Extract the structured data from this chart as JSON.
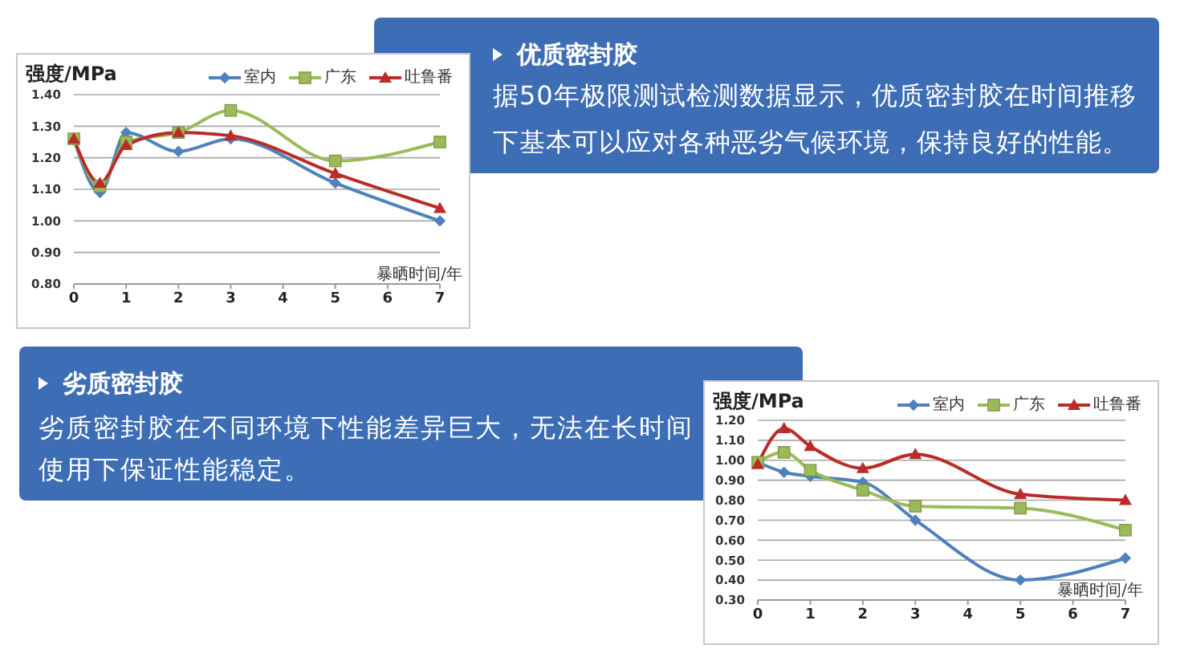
{
  "chart_data": [
    {
      "type": "line",
      "ylabel": "强度/MPa",
      "xlabel": "暴晒时间/年",
      "x": [
        0,
        0.5,
        1,
        2,
        3,
        5,
        7
      ],
      "xlim": [
        0,
        7
      ],
      "xticks": [
        0,
        1,
        2,
        3,
        4,
        5,
        6,
        7
      ],
      "ylim": [
        0.8,
        1.4
      ],
      "yticks": [
        {
          "value": 0.8,
          "label": "0.80"
        },
        {
          "value": 0.9,
          "label": "0.90"
        },
        {
          "value": 1.0,
          "label": "1.00"
        },
        {
          "value": 1.1,
          "label": "1.10"
        },
        {
          "value": 1.2,
          "label": "1.20"
        },
        {
          "value": 1.3,
          "label": "1.30"
        },
        {
          "value": 1.4,
          "label": "1.40"
        }
      ],
      "grid": "y",
      "legend": "top right",
      "line_style": "solid",
      "series": [
        {
          "name": "室内",
          "color": "#4f81bd",
          "marker": "diamond",
          "values": [
            1.26,
            1.09,
            1.28,
            1.22,
            1.26,
            1.12,
            1.0
          ]
        },
        {
          "name": "广东",
          "color": "#9bbb59",
          "marker": "square",
          "values": [
            1.26,
            1.11,
            1.25,
            1.28,
            1.35,
            1.19,
            1.25
          ]
        },
        {
          "name": "吐鲁番",
          "color": "#b92c28",
          "marker": "triangle",
          "values": [
            1.26,
            1.12,
            1.24,
            1.28,
            1.27,
            1.15,
            1.04
          ]
        }
      ]
    },
    {
      "type": "other",
      "title": "优质密封胶",
      "annotations": [
        "据50年极限测试检测数据显示，优质密封胶在时间推移下基本可以应对各种恶劣气候环境，保持良好的性能。"
      ]
    },
    {
      "type": "other",
      "title": "劣质密封胶",
      "annotations": [
        "劣质密封胶在不同环境下性能差异巨大，无法在长时间使用下保证性能稳定。"
      ]
    },
    {
      "type": "line",
      "ylabel": "强度/MPa",
      "xlabel": "暴晒时间/年",
      "x": [
        0,
        0.5,
        1,
        2,
        3,
        5,
        7
      ],
      "xlim": [
        0,
        7
      ],
      "xticks": [
        0,
        1,
        2,
        3,
        4,
        5,
        6,
        7
      ],
      "ylim": [
        0.3,
        1.2
      ],
      "yticks": [
        {
          "value": 0.3,
          "label": "0.30"
        },
        {
          "value": 0.4,
          "label": "0.40"
        },
        {
          "value": 0.5,
          "label": "0.50"
        },
        {
          "value": 0.6,
          "label": "0.60"
        },
        {
          "value": 0.7,
          "label": "0.70"
        },
        {
          "value": 0.8,
          "label": "0.80"
        },
        {
          "value": 0.9,
          "label": "0.90"
        },
        {
          "value": 1.0,
          "label": "1.00"
        },
        {
          "value": 1.1,
          "label": "1.10"
        },
        {
          "value": 1.2,
          "label": "1.20"
        }
      ],
      "grid": "y",
      "legend": "top right",
      "line_style": "solid",
      "series": [
        {
          "name": "室内",
          "color": "#4f81bd",
          "marker": "diamond",
          "values": [
            0.99,
            0.94,
            0.92,
            0.89,
            0.7,
            0.4,
            0.51
          ]
        },
        {
          "name": "广东",
          "color": "#9bbb59",
          "marker": "square",
          "values": [
            0.99,
            1.04,
            0.95,
            0.85,
            0.77,
            0.76,
            0.65
          ]
        },
        {
          "name": "吐鲁番",
          "color": "#b92c28",
          "marker": "triangle",
          "values": [
            0.98,
            1.16,
            1.07,
            0.96,
            1.03,
            0.83,
            0.8
          ]
        }
      ]
    }
  ]
}
